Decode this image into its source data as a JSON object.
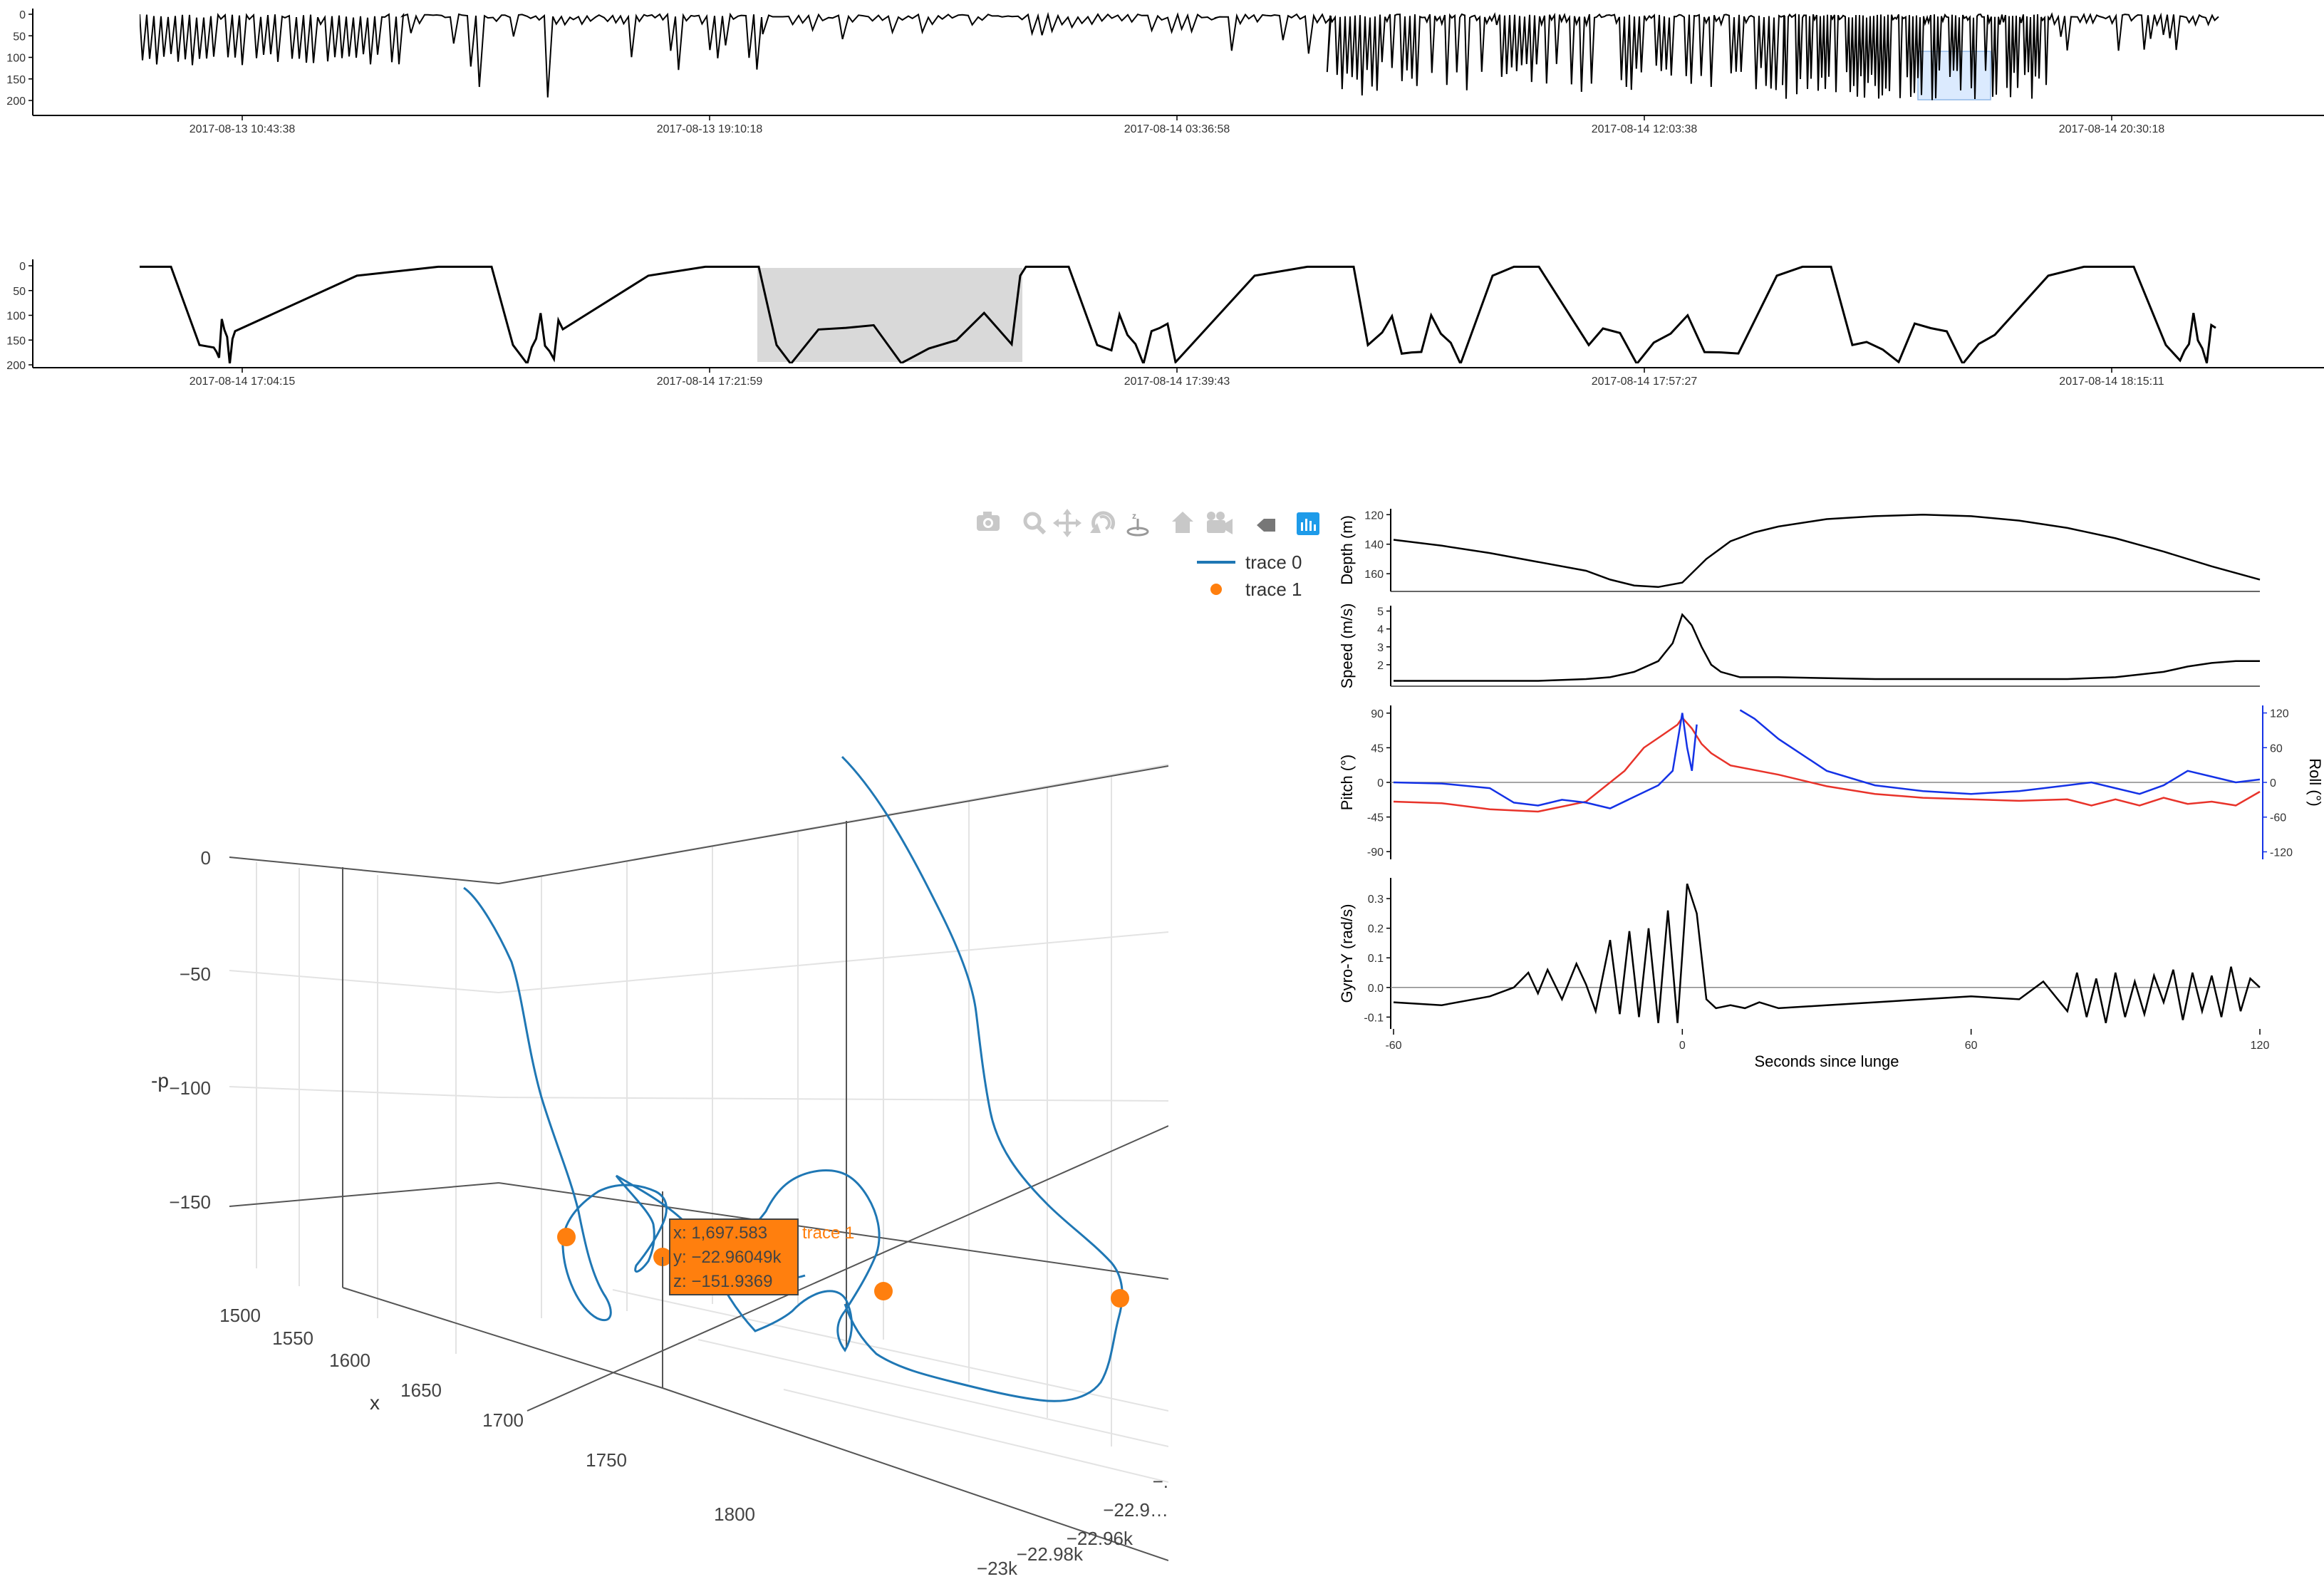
{
  "colors": {
    "line": "#000000",
    "trace0": "#1f77b4",
    "trace1": "#ff7f0e",
    "pitch": "#e8332a",
    "roll": "#1432e6",
    "selection": "#d9d9d9",
    "brush": "#dbeafe",
    "toolbar_active": "#1e9be9",
    "toolbar_inactive": "#c8c8c8"
  },
  "toolbar": [
    {
      "name": "camera-icon",
      "label": "Download plot as a png"
    },
    {
      "name": "zoom-icon",
      "label": "Zoom"
    },
    {
      "name": "pan-icon",
      "label": "Pan"
    },
    {
      "name": "orbit-rotation-icon",
      "label": "Orbital rotation"
    },
    {
      "name": "turntable-icon",
      "label": "Turntable rotation"
    },
    {
      "name": "home-icon",
      "label": "Reset camera to default"
    },
    {
      "name": "camera-video-icon",
      "label": "Reset camera to last save"
    },
    {
      "name": "tag-icon",
      "label": "Toggle show closest data on hover"
    },
    {
      "name": "plotly-logo-icon",
      "label": "Produced with Plotly"
    }
  ],
  "chart_data": [
    {
      "id": "overview",
      "type": "line",
      "y_ticks": [
        "0",
        "50",
        "100",
        "150",
        "200"
      ],
      "ylim": [
        200,
        0
      ],
      "x_ticks": [
        "2017-08-13 10:43:38",
        "2017-08-13 19:10:18",
        "2017-08-14 03:36:58",
        "2017-08-14 12:03:38",
        "2017-08-14 20:30:18"
      ],
      "brush_range": [
        "2017-08-14 17:04",
        "2017-08-14 18:22"
      ]
    },
    {
      "id": "zoom",
      "type": "line",
      "y_ticks": [
        "0",
        "50",
        "100",
        "150",
        "200"
      ],
      "ylim": [
        200,
        0
      ],
      "x_ticks": [
        "2017-08-14 17:04:15",
        "2017-08-14 17:21:59",
        "2017-08-14 17:39:43",
        "2017-08-14 17:57:27",
        "2017-08-14 18:15:11"
      ],
      "highlight_dive": [
        "2017-08-14 17:23",
        "2017-08-14 17:32"
      ]
    },
    {
      "id": "track-3d",
      "type": "scatter3d",
      "axes": {
        "x": {
          "title": "x",
          "ticks": [
            "1500",
            "1550",
            "1600",
            "1650",
            "1700",
            "1750",
            "1800"
          ]
        },
        "y": {
          "title": "",
          "ticks": [
            "−22.9…",
            "−22.96k",
            "−22.98k",
            "−23k"
          ],
          "partial_tick": "−."
        },
        "z": {
          "title": "-p",
          "ticks": [
            "0",
            "−50",
            "−100",
            "−150"
          ]
        }
      },
      "legend": [
        {
          "name": "trace 0",
          "kind": "line"
        },
        {
          "name": "trace 1",
          "kind": "marker"
        }
      ],
      "hover": {
        "lines": [
          "x: 1,697.583",
          "y: −22.96049k",
          "z: −151.9369"
        ],
        "trace": "trace 1"
      },
      "trace1_points": [
        {
          "x": 1640,
          "y": -22960,
          "z": -152
        },
        {
          "x": 1697.583,
          "y": -22960.49,
          "z": -151.9369
        },
        {
          "x": 1730,
          "y": -22930,
          "z": -155
        },
        {
          "x": 1790,
          "y": -22905,
          "z": -160
        }
      ]
    },
    {
      "id": "lunge-panels",
      "type": "line",
      "xlabel": "Seconds since lunge",
      "x_ticks": [
        "-60",
        "0",
        "60",
        "120"
      ],
      "xlim": [
        -60,
        120
      ],
      "panels": [
        {
          "ylabel": "Depth (m)",
          "y_ticks": [
            "120",
            "140",
            "160"
          ],
          "ylim": [
            172,
            116
          ],
          "x": [
            -60,
            -50,
            -40,
            -30,
            -20,
            -15,
            -10,
            -5,
            0,
            5,
            10,
            15,
            20,
            30,
            40,
            50,
            60,
            70,
            80,
            90,
            100,
            110,
            120
          ],
          "y": [
            137,
            141,
            146,
            152,
            158,
            164,
            168,
            169,
            166,
            150,
            138,
            132,
            128,
            123,
            121,
            120,
            121,
            124,
            129,
            136,
            145,
            155,
            164
          ]
        },
        {
          "ylabel": "Speed (m/s)",
          "y_ticks": [
            "2",
            "3",
            "4",
            "5"
          ],
          "ylim": [
            0.8,
            5.3
          ],
          "x": [
            -60,
            -40,
            -30,
            -20,
            -15,
            -10,
            -5,
            -2,
            0,
            2,
            4,
            6,
            8,
            12,
            20,
            40,
            60,
            80,
            90,
            100,
            105,
            110,
            115,
            120
          ],
          "y": [
            1.1,
            1.1,
            1.1,
            1.2,
            1.3,
            1.6,
            2.2,
            3.2,
            4.8,
            4.2,
            3.0,
            2.0,
            1.6,
            1.3,
            1.3,
            1.2,
            1.2,
            1.2,
            1.3,
            1.6,
            1.9,
            2.1,
            2.2,
            2.2
          ]
        },
        {
          "ylabel": "Pitch (°)",
          "ylabel2": "Roll (°)",
          "y_ticks": [
            "-90",
            "-45",
            "0",
            "45",
            "90"
          ],
          "ylim": [
            -100,
            100
          ],
          "y2_ticks": [
            "-120",
            "-60",
            "0",
            "60",
            "120"
          ],
          "y2lim": [
            -133,
            133
          ],
          "series": [
            {
              "name": "Pitch (°)",
              "axis": "left",
              "x": [
                -60,
                -50,
                -40,
                -30,
                -20,
                -12,
                -8,
                -4,
                -1,
                0,
                2,
                4,
                6,
                10,
                20,
                30,
                40,
                50,
                60,
                70,
                80,
                85,
                90,
                95,
                100,
                105,
                110,
                115,
                120
              ],
              "y": [
                -25,
                -27,
                -35,
                -38,
                -25,
                15,
                45,
                62,
                75,
                84,
                70,
                50,
                38,
                22,
                10,
                -5,
                -15,
                -20,
                -22,
                -24,
                -22,
                -30,
                -22,
                -30,
                -20,
                -28,
                -25,
                -30,
                -12
              ]
            },
            {
              "name": "Roll (°)",
              "axis": "right",
              "x": [
                -60,
                -50,
                -40,
                -35,
                -30,
                -25,
                -20,
                -15,
                -10,
                -5,
                -2,
                0,
                1,
                2,
                3,
                5,
                8,
                10,
                12,
                15,
                20,
                30,
                40,
                50,
                60,
                70,
                80,
                85,
                90,
                95,
                100,
                105,
                110,
                115,
                120
              ],
              "y": [
                0,
                -2,
                -10,
                -35,
                -40,
                -30,
                -35,
                -45,
                -25,
                -5,
                20,
                120,
                60,
                20,
                100,
                null,
                null,
                null,
                125,
                110,
                75,
                20,
                -5,
                -15,
                -20,
                -15,
                -5,
                0,
                -10,
                -20,
                -5,
                20,
                10,
                0,
                5
              ]
            }
          ]
        },
        {
          "ylabel": "Gyro-Y (rad/s)",
          "y_ticks": [
            "-0.1",
            "0.0",
            "0.1",
            "0.2",
            "0.3"
          ],
          "ylim": [
            -0.14,
            0.37
          ],
          "x": [
            -60,
            -50,
            -40,
            -35,
            -32,
            -30,
            -28,
            -25,
            -22,
            -20,
            -18,
            -15,
            -13,
            -11,
            -9,
            -7,
            -5,
            -3,
            -1,
            1,
            3,
            5,
            7,
            10,
            13,
            16,
            20,
            30,
            40,
            50,
            60,
            70,
            75,
            80,
            82,
            84,
            86,
            88,
            90,
            92,
            94,
            96,
            98,
            100,
            102,
            104,
            106,
            108,
            110,
            112,
            114,
            116,
            118,
            120
          ],
          "y": [
            -0.05,
            -0.06,
            -0.03,
            0.0,
            0.05,
            -0.02,
            0.06,
            -0.04,
            0.08,
            0.01,
            -0.08,
            0.16,
            -0.09,
            0.19,
            -0.1,
            0.2,
            -0.12,
            0.26,
            -0.12,
            0.35,
            0.25,
            -0.04,
            -0.07,
            -0.06,
            -0.07,
            -0.05,
            -0.07,
            -0.06,
            -0.05,
            -0.04,
            -0.03,
            -0.04,
            0.02,
            -0.08,
            0.05,
            -0.1,
            0.03,
            -0.12,
            0.05,
            -0.1,
            0.02,
            -0.09,
            0.04,
            -0.05,
            0.06,
            -0.11,
            0.05,
            -0.08,
            0.04,
            -0.1,
            0.07,
            -0.08,
            0.03,
            0.0
          ]
        }
      ]
    }
  ]
}
